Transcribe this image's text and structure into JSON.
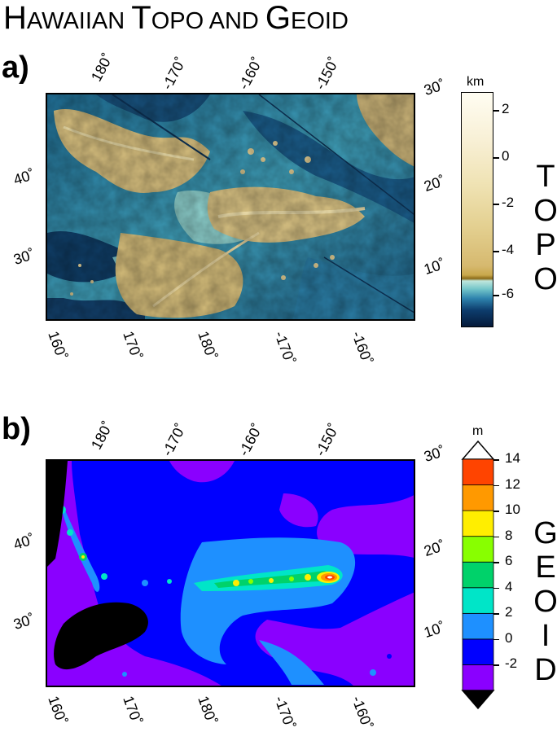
{
  "title": {
    "text": "HAWAIIAN TOPO AND GEOID",
    "parts": [
      [
        "H",
        "big"
      ],
      [
        "AWAIIAN ",
        "sc"
      ],
      [
        "T",
        "big"
      ],
      [
        "OPO AND ",
        "sc"
      ],
      [
        "G",
        "big"
      ],
      [
        "EOID",
        "sc"
      ]
    ]
  },
  "panels": [
    {
      "id": "a",
      "label": "a)",
      "top_labels": [
        "180˚",
        "-170˚",
        "-160˚",
        "-150˚"
      ],
      "left_labels": [
        "40˚",
        "30˚"
      ],
      "bottom_labels": [
        "160˚",
        "170˚",
        "180˚",
        "-170˚",
        "-160˚"
      ],
      "right_labels": [
        "30˚",
        "20˚",
        "10˚"
      ],
      "colorbar": {
        "unit": "km",
        "ticks": [
          "2",
          "0",
          "-2",
          "-4",
          "-6"
        ],
        "title_letters": [
          "T",
          "O",
          "P",
          "O"
        ]
      }
    },
    {
      "id": "b",
      "label": "b)",
      "top_labels": [
        "180˚",
        "-170˚",
        "-160˚",
        "-150˚"
      ],
      "left_labels": [
        "40˚",
        "30˚"
      ],
      "bottom_labels": [
        "160˚",
        "170˚",
        "180˚",
        "-170˚",
        "-160˚"
      ],
      "right_labels": [
        "30˚",
        "20˚",
        "10˚"
      ],
      "colorbar": {
        "unit": "m",
        "ticks": [
          "14",
          "12",
          "10",
          "8",
          "6",
          "4",
          "2",
          "0",
          "-2"
        ],
        "title_letters": [
          "G",
          "E",
          "O",
          "I",
          "D"
        ],
        "bands": [
          "#8a00ff",
          "#0000ff",
          "#1e90ff",
          "#00e5c8",
          "#00d26a",
          "#88ff00",
          "#ffee00",
          "#ff9900",
          "#ff4400"
        ],
        "top_triangle": "#ffffff",
        "bottom_triangle": "#000000"
      }
    }
  ]
}
